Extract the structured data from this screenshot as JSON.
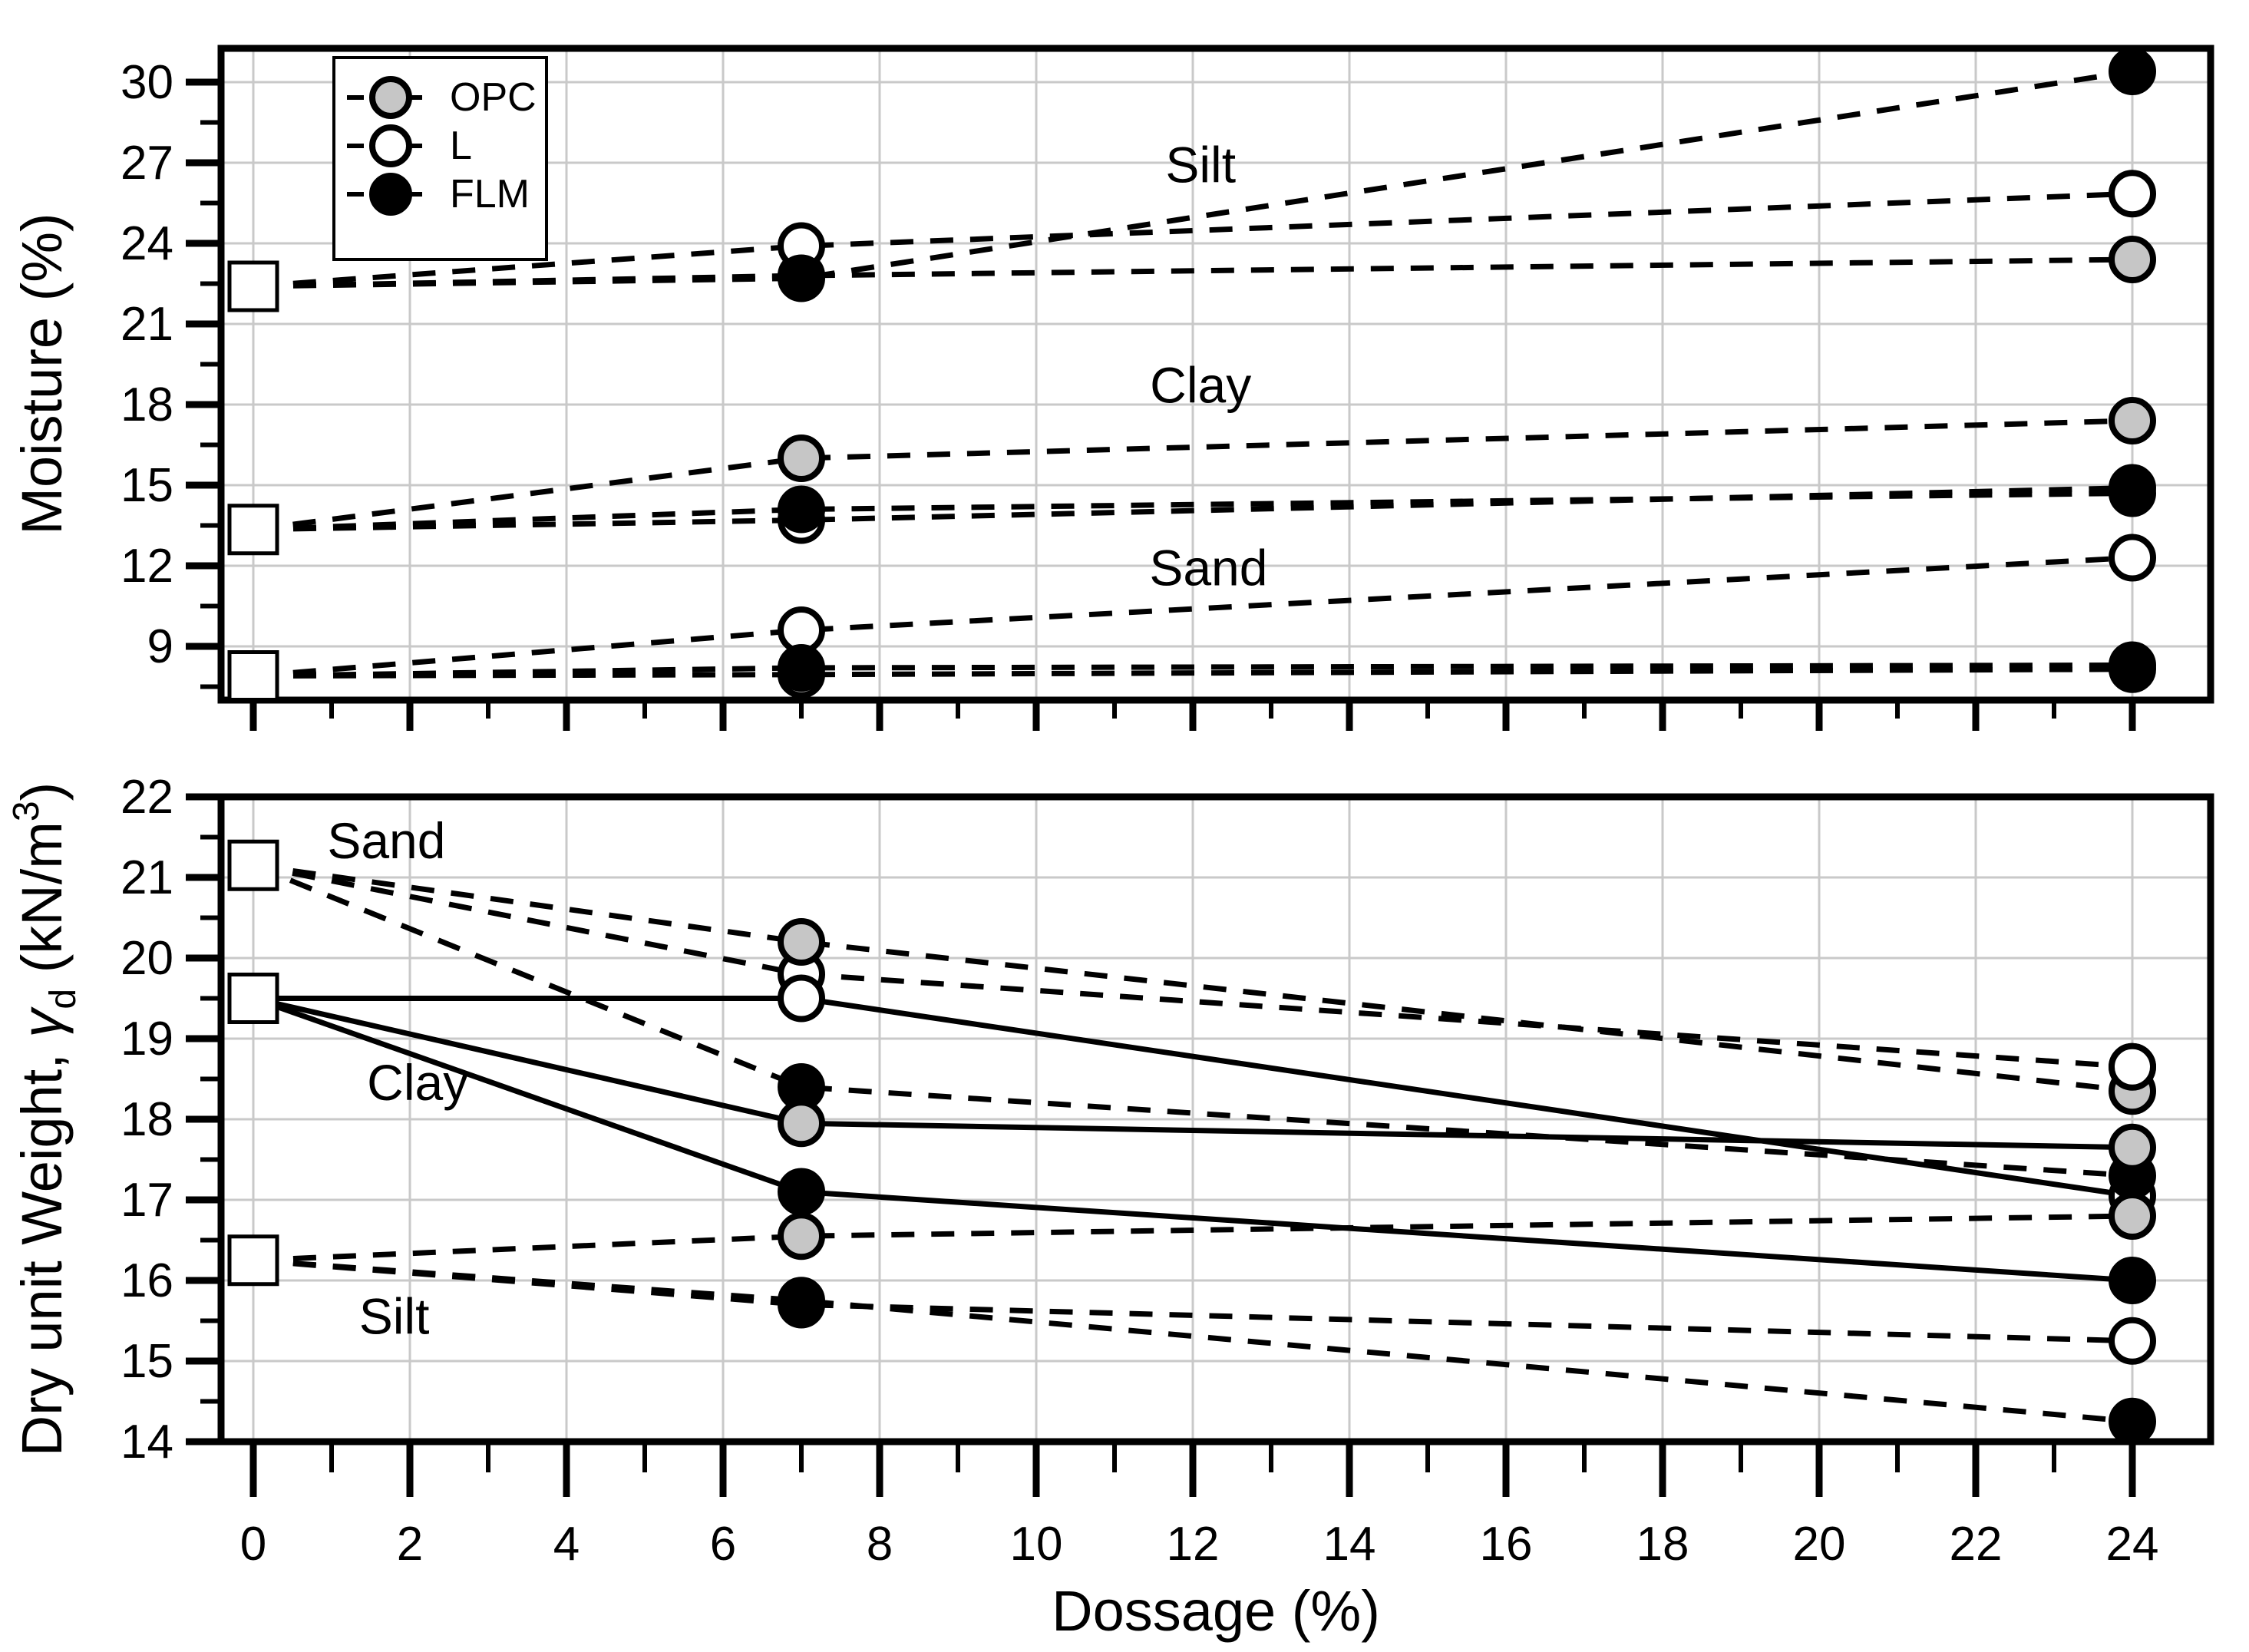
{
  "figure": {
    "xlabel": "Dossage (%)",
    "background": "#ffffff"
  },
  "colors": {
    "axis": "#000000",
    "grid": "#c9c9c9",
    "marker_stroke": "#000000",
    "square_fill": "#ffffff",
    "OPC": "#c6c6c6",
    "L": "#ffffff",
    "FLM": "#000000"
  },
  "legend": {
    "items": [
      {
        "label": "OPC",
        "marker": "circle-gray"
      },
      {
        "label": "L",
        "marker": "circle-white"
      },
      {
        "label": "FLM",
        "marker": "circle-black"
      }
    ]
  },
  "chart_data": [
    {
      "type": "line",
      "panel": "top",
      "ylabel": "Moisture (%)",
      "ylim": [
        7,
        31.3
      ],
      "yticks": [
        9,
        12,
        15,
        18,
        21,
        24,
        27,
        30
      ],
      "xlim": [
        -0.4,
        25
      ],
      "xticks": [
        0,
        2,
        4,
        6,
        8,
        10,
        12,
        14,
        16,
        18,
        20,
        22,
        24
      ],
      "x": [
        0,
        7,
        24
      ],
      "grid": true,
      "series": [
        {
          "soil": "Silt",
          "stabilizer": "OPC",
          "dash": true,
          "values": [
            22.4,
            22.8,
            23.4
          ]
        },
        {
          "soil": "Silt",
          "stabilizer": "L",
          "dash": true,
          "values": [
            22.4,
            23.9,
            25.85
          ]
        },
        {
          "soil": "Silt",
          "stabilizer": "FLM",
          "dash": true,
          "values": [
            22.4,
            22.7,
            30.4
          ]
        },
        {
          "soil": "Clay",
          "stabilizer": "OPC",
          "dash": true,
          "values": [
            13.35,
            16.0,
            17.4
          ]
        },
        {
          "soil": "Clay",
          "stabilizer": "L",
          "dash": true,
          "values": [
            13.35,
            13.7,
            14.9
          ]
        },
        {
          "soil": "Clay",
          "stabilizer": "FLM",
          "dash": true,
          "values": [
            13.35,
            14.1,
            14.7
          ]
        },
        {
          "soil": "Sand",
          "stabilizer": "OPC",
          "dash": true,
          "values": [
            7.9,
            7.95,
            8.15
          ]
        },
        {
          "soil": "Sand",
          "stabilizer": "L",
          "dash": true,
          "values": [
            7.9,
            9.6,
            12.3
          ]
        },
        {
          "soil": "Sand",
          "stabilizer": "FLM",
          "dash": true,
          "values": [
            7.9,
            8.2,
            8.3
          ]
        }
      ],
      "annotations": [
        {
          "text": "Silt",
          "x": 12.1,
          "y": 26.9
        },
        {
          "text": "Clay",
          "x": 12.1,
          "y": 18.7
        },
        {
          "text": "Sand",
          "x": 12.2,
          "y": 11.9
        }
      ]
    },
    {
      "type": "line",
      "panel": "bottom",
      "ylabel": "Dry unit Weight, γd (kN/m³)",
      "ylabel_parts": [
        {
          "t": "Dry unit Weight, "
        },
        {
          "t": "γ",
          "italic": true
        },
        {
          "t": "d",
          "sub": true
        },
        {
          "t": " (kN/m"
        },
        {
          "t": "3",
          "sup": true
        },
        {
          "t": ")"
        }
      ],
      "ylim": [
        14,
        22
      ],
      "yticks": [
        14,
        15,
        16,
        17,
        18,
        19,
        20,
        21,
        22
      ],
      "xlim": [
        -0.4,
        25
      ],
      "xticks": [
        0,
        2,
        4,
        6,
        8,
        10,
        12,
        14,
        16,
        18,
        20,
        22,
        24
      ],
      "x": [
        0,
        7,
        24
      ],
      "grid": true,
      "series": [
        {
          "soil": "Sand",
          "stabilizer": "L",
          "dash": true,
          "values": [
            21.15,
            19.8,
            18.65
          ]
        },
        {
          "soil": "Sand",
          "stabilizer": "OPC",
          "dash": true,
          "values": [
            21.15,
            20.2,
            18.35
          ]
        },
        {
          "soil": "Clay",
          "stabilizer": "L",
          "dash": false,
          "values": [
            19.5,
            19.5,
            17.05
          ]
        },
        {
          "soil": "Sand",
          "stabilizer": "FLM",
          "dash": true,
          "values": [
            21.15,
            18.4,
            17.3
          ]
        },
        {
          "soil": "Silt",
          "stabilizer": "L",
          "dash": true,
          "values": [
            16.25,
            15.7,
            15.25
          ]
        },
        {
          "soil": "Silt",
          "stabilizer": "OPC",
          "dash": true,
          "values": [
            16.25,
            16.55,
            16.8
          ]
        },
        {
          "soil": "Silt",
          "stabilizer": "FLM",
          "dash": true,
          "values": [
            16.25,
            15.75,
            14.25
          ]
        },
        {
          "soil": "Clay",
          "stabilizer": "FLM",
          "dash": false,
          "values": [
            19.5,
            17.1,
            16.0
          ]
        },
        {
          "soil": "Clay",
          "stabilizer": "OPC",
          "dash": false,
          "values": [
            19.5,
            17.95,
            17.65
          ]
        }
      ],
      "overdraw": [
        {
          "soil": "Sand",
          "stabilizer": "L",
          "point": 2
        }
      ],
      "annotations": [
        {
          "text": "Sand",
          "x": 1.7,
          "y": 21.45
        },
        {
          "text": "Clay",
          "x": 2.1,
          "y": 18.45
        },
        {
          "text": "Silt",
          "x": 1.8,
          "y": 15.55
        }
      ]
    }
  ]
}
